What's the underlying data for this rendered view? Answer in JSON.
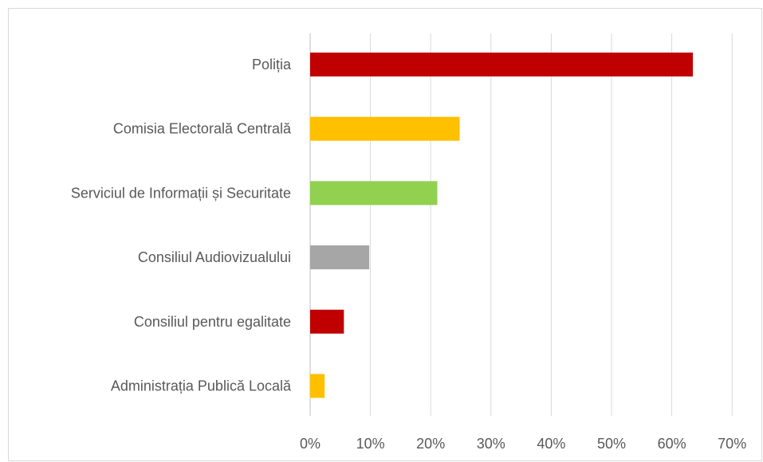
{
  "chart_data": {
    "type": "bar",
    "orientation": "horizontal",
    "categories": [
      "Poliția",
      "Comisia Electorală Centrală",
      "Serviciul de Informații și Securitate",
      "Consiliul Audiovizualului",
      "Consiliul pentru egalitate",
      "Administrația Publică Locală"
    ],
    "values": [
      63.5,
      24.8,
      21.1,
      9.8,
      5.6,
      2.4
    ],
    "colors": [
      "#c00000",
      "#ffc000",
      "#92d050",
      "#a6a6a6",
      "#c00000",
      "#ffc000"
    ],
    "xlim": [
      0,
      70
    ],
    "x_ticks": [
      0,
      10,
      20,
      30,
      40,
      50,
      60,
      70
    ],
    "x_tick_labels": [
      "0%",
      "10%",
      "20%",
      "30%",
      "40%",
      "50%",
      "60%",
      "70%"
    ],
    "grid": true,
    "gridline_color": "#d9d9d9",
    "axis_color": "#bfbfbf",
    "legend": "none"
  }
}
